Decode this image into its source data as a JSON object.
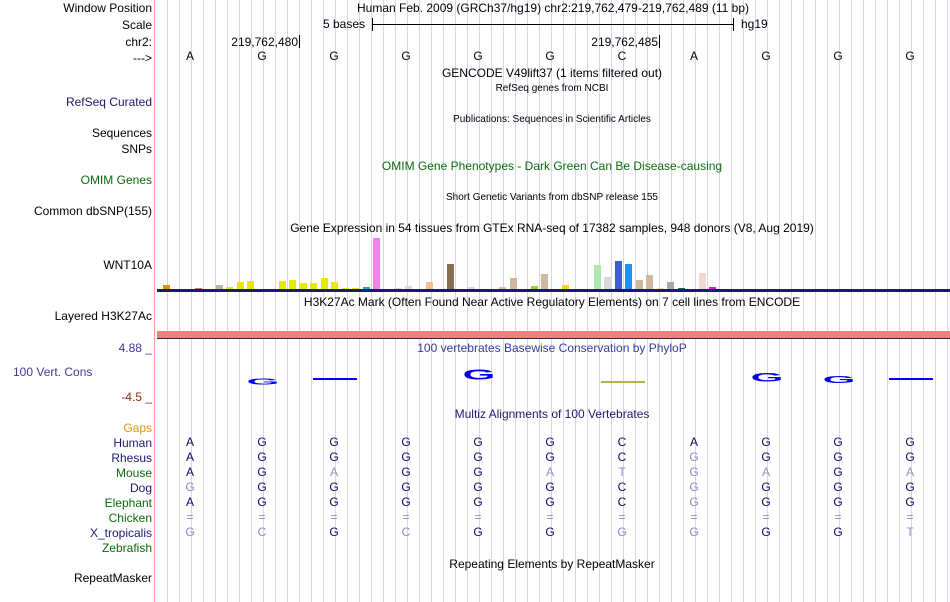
{
  "header": {
    "window_position_label": "Window Position",
    "assembly_text": "Human Feb. 2009 (GRCh37/hg19)   chr2:219,762,479-219,762,489 (11 bp)",
    "scale_label": "Scale",
    "scale_text": "5 bases",
    "scale_assembly": "hg19",
    "chrom_label": "chr2:",
    "pos1": "219,762,480",
    "pos2": "219,762,485",
    "strand_label": "--->"
  },
  "sequence": [
    "A",
    "G",
    "G",
    "G",
    "G",
    "G",
    "C",
    "A",
    "G",
    "G",
    "G"
  ],
  "tracks": {
    "gencode_title": "GENCODE V49lift37 (1 items filtered out)",
    "refseq_title": "RefSeq genes from NCBI",
    "refseq_label": "RefSeq Curated",
    "publications_title": "Publications: Sequences in Scientific Articles",
    "sequences_label": "Sequences",
    "snps_label": "SNPs",
    "omim_title": "OMIM Gene Phenotypes - Dark Green Can Be Disease-causing",
    "omim_label": "OMIM Genes",
    "dbsnp_title": "Short Genetic Variants from dbSNP release 155",
    "dbsnp_label": "Common dbSNP(155)",
    "gtex_title": "Gene Expression in 54 tissues from GTEx RNA-seq of 17382 samples, 948 donors (V8, Aug 2019)",
    "gtex_label": "WNT10A",
    "h3k27ac_title": "H3K27Ac Mark (Often Found Near Active Regulatory Elements) on 7 cell lines from ENCODE",
    "h3k27ac_label": "Layered H3K27Ac",
    "phylop_max": "4.88 _",
    "phylop_min": "-4.5 _",
    "phylop_label": "100 Vert. Cons",
    "phylop_title": "100 vertebrates Basewise Conservation by PhyloP",
    "multiz_title": "Multiz Alignments of 100 Vertebrates",
    "repeat_title": "Repeating Elements by RepeatMasker",
    "repeat_label": "RepeatMasker"
  },
  "gtex_bars": [
    {
      "color": "#ee8c00",
      "h": 0.1
    },
    {
      "color": "#ffffff",
      "h": 0
    },
    {
      "color": "#ffffff",
      "h": 0
    },
    {
      "color": "#e66a5a",
      "h": 0.03
    },
    {
      "color": "#ffffff",
      "h": 0
    },
    {
      "color": "#c8b09a",
      "h": 0.1
    },
    {
      "color": "#e8e800",
      "h": 0.06
    },
    {
      "color": "#e8e800",
      "h": 0.16
    },
    {
      "color": "#e8e800",
      "h": 0.18
    },
    {
      "color": "#ffffff",
      "h": 0
    },
    {
      "color": "#ffffff",
      "h": 0
    },
    {
      "color": "#e8e800",
      "h": 0.18
    },
    {
      "color": "#e8e800",
      "h": 0.2
    },
    {
      "color": "#e8e800",
      "h": 0.13
    },
    {
      "color": "#e8e800",
      "h": 0.13
    },
    {
      "color": "#e8e800",
      "h": 0.24
    },
    {
      "color": "#e8e800",
      "h": 0.16
    },
    {
      "color": "#e8e800",
      "h": 0.03
    },
    {
      "color": "#e8e800",
      "h": 0.03
    },
    {
      "color": "#00b4c8",
      "h": 0.05
    },
    {
      "color": "#ee82ee",
      "h": 1.0
    },
    {
      "color": "#ffffff",
      "h": 0
    },
    {
      "color": "#f2d0d0",
      "h": 0.04
    },
    {
      "color": "#f2d0d0",
      "h": 0.07
    },
    {
      "color": "#d8c0b0",
      "h": 0.02
    },
    {
      "color": "#f0c08a",
      "h": 0.15
    },
    {
      "color": "#ffffff",
      "h": 0
    },
    {
      "color": "#8b6e50",
      "h": 0.5
    },
    {
      "color": "#ffffff",
      "h": 0
    },
    {
      "color": "#f2d0d0",
      "h": 0.05
    },
    {
      "color": "#ffffff",
      "h": 0
    },
    {
      "color": "#ffffff",
      "h": 0
    },
    {
      "color": "#d8c0b0",
      "h": 0.05
    },
    {
      "color": "#d0b8a0",
      "h": 0.24
    },
    {
      "color": "#ffffff",
      "h": 0
    },
    {
      "color": "#9acd32",
      "h": 0.07
    },
    {
      "color": "#d0b8a0",
      "h": 0.3
    },
    {
      "color": "#ffffff",
      "h": 0
    },
    {
      "color": "#ffd700",
      "h": 0.09
    },
    {
      "color": "#ffc0cb",
      "h": 0.02
    },
    {
      "color": "#ffffff",
      "h": 0
    },
    {
      "color": "#b0e8b0",
      "h": 0.48
    },
    {
      "color": "#d8d8d8",
      "h": 0.25
    },
    {
      "color": "#3a5fcd",
      "h": 0.55
    },
    {
      "color": "#1e90ff",
      "h": 0.5
    },
    {
      "color": "#d0b8a0",
      "h": 0.19
    },
    {
      "color": "#d0b8a0",
      "h": 0.28
    },
    {
      "color": "#ffd0a0",
      "h": 0.03
    },
    {
      "color": "#a8a8a8",
      "h": 0.15
    },
    {
      "color": "#007a3d",
      "h": 0.03
    },
    {
      "color": "#f2d0d0",
      "h": 0.02
    },
    {
      "color": "#f0d8d0",
      "h": 0.32
    },
    {
      "color": "#ff00ff",
      "h": 0.06
    }
  ],
  "phylop": [
    {
      "base": "G",
      "col": 1,
      "score": 0.35,
      "kind": "letter",
      "color": "#0000ee"
    },
    {
      "base": "-",
      "col": 2,
      "score": 0.15,
      "kind": "dash",
      "color": "#0000ee"
    },
    {
      "base": "G",
      "col": 4,
      "score": 1.0,
      "kind": "letter",
      "color": "#0000ee"
    },
    {
      "base": "-",
      "col": 6,
      "score": -0.15,
      "kind": "dash",
      "color": "#b8b050"
    },
    {
      "base": "G",
      "col": 8,
      "score": 0.7,
      "kind": "letter",
      "color": "#0000ee"
    },
    {
      "base": "G",
      "col": 9,
      "score": 0.5,
      "kind": "letter",
      "color": "#0000ee"
    },
    {
      "base": "-",
      "col": 10,
      "score": 0.1,
      "kind": "dash",
      "color": "#0000ee"
    }
  ],
  "alignment": {
    "gaps_label": "Gaps",
    "species": [
      {
        "name": "Human",
        "color": "navy",
        "bases": "AGGGGGCAGGG",
        "faint": "00000000000"
      },
      {
        "name": "Rhesus",
        "color": "navy",
        "bases": "AGGGGGCGGGG",
        "faint": "00000001000"
      },
      {
        "name": "Mouse",
        "color": "green",
        "bases": "AGAGGATGAGA",
        "faint": "00100111101"
      },
      {
        "name": "Dog",
        "color": "navy",
        "bases": "GGGGGGCGGGG",
        "faint": "10000001000"
      },
      {
        "name": "Elephant",
        "color": "green",
        "bases": "AGGGGGCGGGG",
        "faint": "00000001000"
      },
      {
        "name": "Chicken",
        "color": "green",
        "bases": "===========",
        "faint": "11111111111"
      },
      {
        "name": "X_tropicalis",
        "color": "navy",
        "bases": "GCGCGGGGGGT",
        "faint": "11010011001"
      },
      {
        "name": "Zebrafish",
        "color": "green",
        "bases": "",
        "faint": ""
      }
    ]
  }
}
